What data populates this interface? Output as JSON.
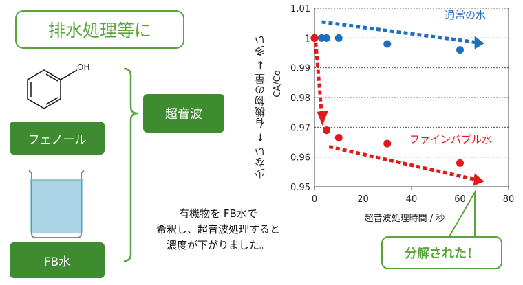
{
  "left_panel": {
    "title": "排水処理等に",
    "phenol_label": "フェノール",
    "phenol_oh": "OH",
    "fb_label": "FB水",
    "sonication_label": "超音波",
    "description": [
      "有機物を FB水で",
      "希釈し、超音波処理すると",
      "濃度が下がりました。"
    ]
  },
  "callout": "分解された！",
  "colors": {
    "green": "#5aa53b",
    "dark_green": "#3f8b2f",
    "blue": "#1f6fbf",
    "red": "#e01a1a"
  },
  "chart_data": {
    "type": "scatter",
    "ylabel": "CA/Co",
    "ylabel_side": "少ない ← 有機物の量 → 多い",
    "xlabel": "超音波処理時間 / 秒",
    "xlim": [
      0,
      80
    ],
    "ylim": [
      0.95,
      1.01
    ],
    "xticks": [
      "0",
      "20",
      "40",
      "60",
      "80"
    ],
    "yticks": [
      "0.95",
      "0.96",
      "0.97",
      "0.98",
      "0.99",
      "1",
      "1.01"
    ],
    "grid": true,
    "series": [
      {
        "name": "通常の水",
        "color": "#1f6fbf",
        "x": [
          0,
          3,
          5,
          10,
          30,
          60
        ],
        "y": [
          1.0,
          1.0,
          1.0,
          1.0,
          0.998,
          0.996
        ]
      },
      {
        "name": "ファインバブル水",
        "color": "#e01a1a",
        "x": [
          0,
          5,
          10,
          30,
          60
        ],
        "y": [
          1.0,
          0.969,
          0.9665,
          0.9645,
          0.958
        ]
      }
    ]
  }
}
